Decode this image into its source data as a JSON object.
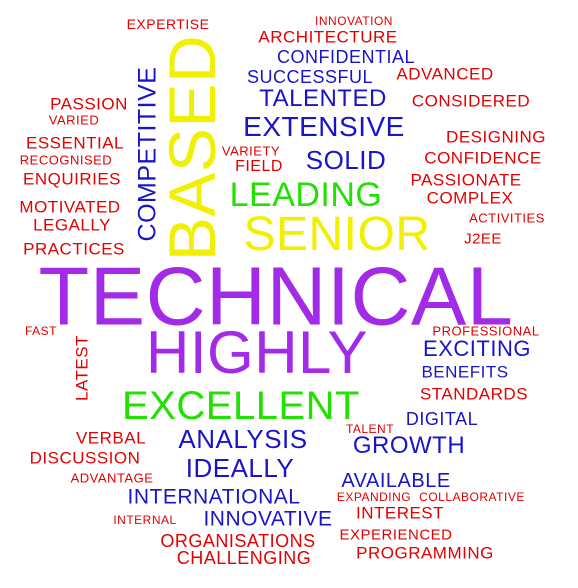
{
  "words": [
    {
      "text": "EXPERTISE",
      "color": "#e30000",
      "vertical": false
    },
    {
      "text": "INNOVATION",
      "color": "#e30000",
      "vertical": false
    },
    {
      "text": "ARCHITECTURE",
      "color": "#e30000",
      "vertical": false
    },
    {
      "text": "CONFIDENTIAL",
      "color": "#1a14c8",
      "vertical": false
    },
    {
      "text": "SUCCESSFUL",
      "color": "#1a14c8",
      "vertical": false
    },
    {
      "text": "ADVANCED",
      "color": "#e30000",
      "vertical": false
    },
    {
      "text": "TALENTED",
      "color": "#1a14c8",
      "vertical": false
    },
    {
      "text": "CONSIDERED",
      "color": "#e30000",
      "vertical": false
    },
    {
      "text": "PASSION",
      "color": "#e30000",
      "vertical": false
    },
    {
      "text": "VARIED",
      "color": "#e30000",
      "vertical": false
    },
    {
      "text": "EXTENSIVE",
      "color": "#1a14c8",
      "vertical": false
    },
    {
      "text": "DESIGNING",
      "color": "#e30000",
      "vertical": false
    },
    {
      "text": "ESSENTIAL",
      "color": "#e30000",
      "vertical": false
    },
    {
      "text": "VARIETY",
      "color": "#e30000",
      "vertical": false
    },
    {
      "text": "SOLID",
      "color": "#1a14c8",
      "vertical": false
    },
    {
      "text": "CONFIDENCE",
      "color": "#e30000",
      "vertical": false
    },
    {
      "text": "RECOGNISED",
      "color": "#e30000",
      "vertical": false
    },
    {
      "text": "FIELD",
      "color": "#e30000",
      "vertical": false
    },
    {
      "text": "ENQUIRIES",
      "color": "#e30000",
      "vertical": false
    },
    {
      "text": "PASSIONATE",
      "color": "#e30000",
      "vertical": false
    },
    {
      "text": "LEADING",
      "color": "#22e000",
      "vertical": false
    },
    {
      "text": "COMPLEX",
      "color": "#e30000",
      "vertical": false
    },
    {
      "text": "MOTIVATED",
      "color": "#e30000",
      "vertical": false
    },
    {
      "text": "ACTIVITIES",
      "color": "#e30000",
      "vertical": false
    },
    {
      "text": "LEGALLY",
      "color": "#e30000",
      "vertical": false
    },
    {
      "text": "J2EE",
      "color": "#e30000",
      "vertical": false
    },
    {
      "text": "PRACTICES",
      "color": "#e30000",
      "vertical": false
    },
    {
      "text": "SENIOR",
      "color": "#f0f000",
      "vertical": false
    },
    {
      "text": "COMPETITIVE",
      "color": "#1a14c8",
      "vertical": true
    },
    {
      "text": "BASED",
      "color": "#f0f000",
      "vertical": true
    },
    {
      "text": "TECHNICAL",
      "color": "#a12be6",
      "vertical": false
    },
    {
      "text": "FAST",
      "color": "#e30000",
      "vertical": false
    },
    {
      "text": "PROFESSIONAL",
      "color": "#e30000",
      "vertical": false
    },
    {
      "text": "HIGHLY",
      "color": "#a12be6",
      "vertical": false
    },
    {
      "text": "EXCITING",
      "color": "#1a14c8",
      "vertical": false
    },
    {
      "text": "LATEST",
      "color": "#e30000",
      "vertical": true
    },
    {
      "text": "BENEFITS",
      "color": "#1a14c8",
      "vertical": false
    },
    {
      "text": "STANDARDS",
      "color": "#e30000",
      "vertical": false
    },
    {
      "text": "EXCELLENT",
      "color": "#22e000",
      "vertical": false
    },
    {
      "text": "DIGITAL",
      "color": "#1a14c8",
      "vertical": false
    },
    {
      "text": "TALENT",
      "color": "#e30000",
      "vertical": false
    },
    {
      "text": "VERBAL",
      "color": "#e30000",
      "vertical": false
    },
    {
      "text": "ANALYSIS",
      "color": "#1a14c8",
      "vertical": false
    },
    {
      "text": "GROWTH",
      "color": "#1a14c8",
      "vertical": false
    },
    {
      "text": "DISCUSSION",
      "color": "#e30000",
      "vertical": false
    },
    {
      "text": "IDEALLY",
      "color": "#1a14c8",
      "vertical": false
    },
    {
      "text": "ADVANTAGE",
      "color": "#e30000",
      "vertical": false
    },
    {
      "text": "AVAILABLE",
      "color": "#1a14c8",
      "vertical": false
    },
    {
      "text": "INTERNATIONAL",
      "color": "#1a14c8",
      "vertical": false
    },
    {
      "text": "EXPANDING",
      "color": "#e30000",
      "vertical": false
    },
    {
      "text": "COLLABORATIVE",
      "color": "#e30000",
      "vertical": false
    },
    {
      "text": "INTEREST",
      "color": "#e30000",
      "vertical": false
    },
    {
      "text": "INTERNAL",
      "color": "#e30000",
      "vertical": false
    },
    {
      "text": "INNOVATIVE",
      "color": "#1a14c8",
      "vertical": false
    },
    {
      "text": "EXPERIENCED",
      "color": "#e30000",
      "vertical": false
    },
    {
      "text": "ORGANISATIONS",
      "color": "#e30000",
      "vertical": false
    },
    {
      "text": "PROGRAMMING",
      "color": "#e30000",
      "vertical": false
    },
    {
      "text": "CHALLENGING",
      "color": "#e30000",
      "vertical": false
    }
  ]
}
